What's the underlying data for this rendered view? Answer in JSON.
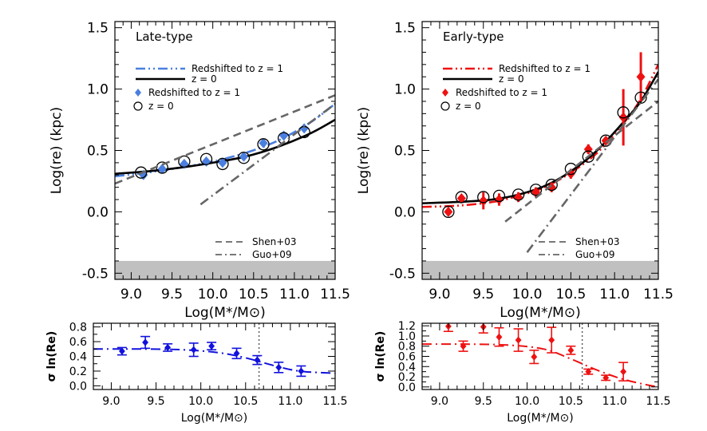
{
  "chart_data": [
    {
      "id": "late_main",
      "type": "scatter",
      "title": "Late-type",
      "xlabel": "Log(M*/M⊙)",
      "ylabel": "Log(re) (kpc)",
      "xlim": [
        8.8,
        11.5
      ],
      "ylim": [
        -0.55,
        1.55
      ],
      "xticks": [
        "9.0",
        "9.5",
        "10.0",
        "10.5",
        "11.0",
        "11.5"
      ],
      "yticks": [
        "-0.5",
        "0.0",
        "0.5",
        "1.0",
        "1.5"
      ],
      "shaded_band_y": [
        -0.55,
        -0.4
      ],
      "series": [
        {
          "name": "Redshifted to z = 1",
          "kind": "curve",
          "style": "dash-dot-dot",
          "color": "#4a7fe0",
          "x": [
            8.8,
            9.2,
            9.6,
            10.0,
            10.4,
            10.8,
            11.2,
            11.5
          ],
          "y": [
            0.29,
            0.32,
            0.36,
            0.41,
            0.48,
            0.58,
            0.73,
            0.88
          ]
        },
        {
          "name": "z = 0",
          "kind": "curve",
          "style": "solid",
          "color": "#000000",
          "x": [
            8.8,
            9.2,
            9.6,
            10.0,
            10.4,
            10.8,
            11.2,
            11.5
          ],
          "y": [
            0.31,
            0.33,
            0.36,
            0.4,
            0.45,
            0.53,
            0.64,
            0.75
          ]
        },
        {
          "name": "Redshifted to z = 1",
          "kind": "points",
          "marker": "diamond",
          "color": "#4a7fe0",
          "x": [
            9.15,
            9.38,
            9.65,
            9.92,
            10.12,
            10.38,
            10.62,
            10.87,
            11.12
          ],
          "y": [
            0.3,
            0.35,
            0.39,
            0.41,
            0.4,
            0.45,
            0.56,
            0.62,
            0.68
          ]
        },
        {
          "name": "z = 0",
          "kind": "points",
          "marker": "circle",
          "color": "#000000",
          "x": [
            9.12,
            9.38,
            9.65,
            9.92,
            10.12,
            10.38,
            10.62,
            10.87,
            11.12
          ],
          "y": [
            0.32,
            0.36,
            0.41,
            0.43,
            0.39,
            0.44,
            0.55,
            0.6,
            0.65
          ]
        },
        {
          "name": "Shen+03",
          "kind": "curve",
          "style": "dashed",
          "color": "#666666",
          "x": [
            8.8,
            11.5
          ],
          "y": [
            0.23,
            0.95
          ]
        },
        {
          "name": "Guo+09",
          "kind": "curve",
          "style": "dash-dot",
          "color": "#666666",
          "x": [
            9.85,
            11.5
          ],
          "y": [
            0.06,
            0.88
          ]
        }
      ]
    },
    {
      "id": "early_main",
      "type": "scatter",
      "title": "Early-type",
      "xlabel": "Log(M*/M⊙)",
      "ylabel": "Log(re) (kpc)",
      "xlim": [
        8.8,
        11.5
      ],
      "ylim": [
        -0.55,
        1.55
      ],
      "xticks": [
        "9.0",
        "9.5",
        "10.0",
        "10.5",
        "11.0",
        "11.5"
      ],
      "yticks": [
        "-0.5",
        "0.0",
        "0.5",
        "1.0",
        "1.5"
      ],
      "shaded_band_y": [
        -0.55,
        -0.4
      ],
      "series": [
        {
          "name": "Redshifted to z = 1",
          "kind": "curve",
          "style": "dash-dot-dot",
          "color": "#ee1111",
          "x": [
            8.8,
            9.2,
            9.6,
            9.9,
            10.2,
            10.5,
            10.8,
            11.1,
            11.3,
            11.5
          ],
          "y": [
            0.04,
            0.05,
            0.08,
            0.13,
            0.2,
            0.32,
            0.48,
            0.72,
            0.92,
            1.2
          ]
        },
        {
          "name": "z = 0",
          "kind": "curve",
          "style": "solid",
          "color": "#000000",
          "x": [
            8.8,
            9.2,
            9.6,
            9.9,
            10.2,
            10.5,
            10.8,
            11.1,
            11.3,
            11.5
          ],
          "y": [
            0.07,
            0.08,
            0.1,
            0.14,
            0.21,
            0.33,
            0.5,
            0.73,
            0.9,
            1.14
          ]
        },
        {
          "name": "Redshifted to z = 1",
          "kind": "points",
          "marker": "diamond",
          "color": "#ee1111",
          "x": [
            9.1,
            9.25,
            9.5,
            9.68,
            9.9,
            10.1,
            10.28,
            10.5,
            10.7,
            10.9,
            11.1,
            11.3
          ],
          "y": [
            0.0,
            0.11,
            0.09,
            0.1,
            0.12,
            0.16,
            0.2,
            0.31,
            0.51,
            0.58,
            0.77,
            1.1
          ],
          "yerr": [
            0.02,
            0.02,
            0.07,
            0.05,
            0.04,
            0.04,
            0.04,
            0.04,
            0.04,
            0.03,
            0.23,
            0.2
          ]
        },
        {
          "name": "z = 0",
          "kind": "points",
          "marker": "circle",
          "color": "#000000",
          "x": [
            9.1,
            9.25,
            9.5,
            9.68,
            9.9,
            10.1,
            10.28,
            10.5,
            10.7,
            10.9,
            11.1,
            11.3
          ],
          "y": [
            0.0,
            0.12,
            0.12,
            0.13,
            0.14,
            0.18,
            0.22,
            0.35,
            0.45,
            0.58,
            0.81,
            0.93
          ]
        },
        {
          "name": "Shen+03",
          "kind": "curve",
          "style": "dashed",
          "color": "#666666",
          "x": [
            9.75,
            11.5
          ],
          "y": [
            -0.08,
            0.9
          ]
        },
        {
          "name": "Guo+09",
          "kind": "curve",
          "style": "dash-dot",
          "color": "#666666",
          "x": [
            10.0,
            11.5
          ],
          "y": [
            -0.33,
            1.08
          ]
        }
      ]
    },
    {
      "id": "late_scatter",
      "type": "scatter",
      "xlabel": "Log(M*/M⊙)",
      "ylabel": "σ ln(Re)",
      "xlim": [
        8.8,
        11.5
      ],
      "ylim": [
        -0.05,
        0.85
      ],
      "xticks": [
        "9.0",
        "9.5",
        "10.0",
        "10.5",
        "11.0",
        "11.5"
      ],
      "yticks": [
        "0.0",
        "0.2",
        "0.4",
        "0.6",
        "0.8"
      ],
      "vline_x": 10.65,
      "series": [
        {
          "kind": "curve",
          "style": "dash-dot",
          "color": "#1111dd",
          "x": [
            8.8,
            9.3,
            9.8,
            10.2,
            10.5,
            10.8,
            11.1,
            11.5
          ],
          "y": [
            0.5,
            0.5,
            0.49,
            0.45,
            0.38,
            0.28,
            0.2,
            0.17
          ]
        },
        {
          "kind": "points",
          "marker": "diamond",
          "color": "#1111dd",
          "x": [
            9.12,
            9.38,
            9.63,
            9.92,
            10.12,
            10.4,
            10.63,
            10.87,
            11.12
          ],
          "y": [
            0.47,
            0.59,
            0.52,
            0.49,
            0.54,
            0.44,
            0.35,
            0.25,
            0.2
          ],
          "yerr": [
            0.05,
            0.08,
            0.05,
            0.09,
            0.05,
            0.07,
            0.06,
            0.07,
            0.07
          ]
        }
      ]
    },
    {
      "id": "early_scatter",
      "type": "scatter",
      "xlabel": "Log(M*/M⊙)",
      "ylabel": "σ ln(Re)",
      "xlim": [
        8.8,
        11.5
      ],
      "ylim": [
        -0.05,
        1.25
      ],
      "xticks": [
        "9.0",
        "9.5",
        "10.0",
        "10.5",
        "11.0",
        "11.5"
      ],
      "yticks": [
        "0.0",
        "0.2",
        "0.4",
        "0.6",
        "0.8",
        "1.0",
        "1.2"
      ],
      "vline_x": 10.63,
      "series": [
        {
          "kind": "curve",
          "style": "dash-dot",
          "color": "#ee1111",
          "x": [
            8.8,
            9.3,
            9.8,
            10.2,
            10.5,
            10.8,
            11.1,
            11.4,
            11.5
          ],
          "y": [
            0.84,
            0.84,
            0.82,
            0.74,
            0.55,
            0.33,
            0.15,
            0.03,
            0.01
          ]
        },
        {
          "kind": "points",
          "marker": "diamond",
          "color": "#ee1111",
          "x": [
            9.1,
            9.27,
            9.5,
            9.68,
            9.9,
            10.08,
            10.28,
            10.5,
            10.7,
            10.9,
            11.1
          ],
          "y": [
            1.19,
            0.8,
            1.18,
            0.98,
            0.92,
            0.59,
            0.92,
            0.72,
            0.3,
            0.18,
            0.3
          ],
          "yerr": [
            0.1,
            0.1,
            0.12,
            0.18,
            0.22,
            0.13,
            0.25,
            0.08,
            0.05,
            0.05,
            0.18
          ]
        }
      ]
    }
  ]
}
